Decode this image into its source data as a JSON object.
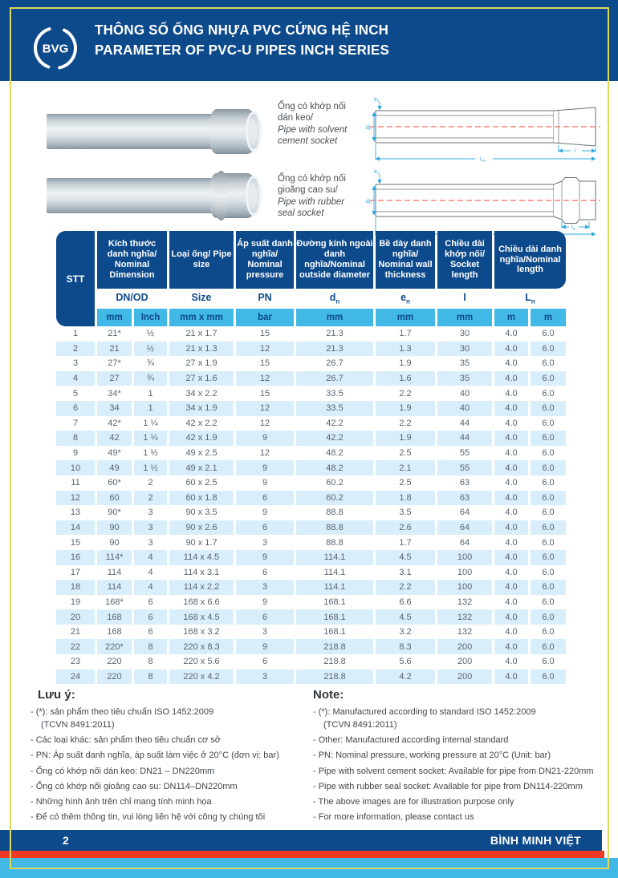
{
  "header": {
    "logo_text": "BVG",
    "title_vi": "THÔNG SỐ ỐNG NHỰA PVC CỨNG HỆ INCH",
    "title_en": "PARAMETER OF PVC-U PIPES INCH SERIES"
  },
  "illustrations": {
    "pipes": [
      {
        "label_vi": "Ống có khớp nối dán keo/",
        "label_en": "Pipe with solvent cement socket"
      },
      {
        "label_vi": "Ống có khớp nối gioăng cao su/",
        "label_en": "Pipe with rubber seal socket"
      }
    ],
    "dims": {
      "en": {
        "base": "e",
        "sub": "n"
      },
      "dn": {
        "base": "d",
        "sub": "n"
      },
      "l": {
        "base": "l",
        "sub": ""
      },
      "ls": {
        "base": "l",
        "sub": "s"
      },
      "Ln": {
        "base": "L",
        "sub": "n"
      }
    }
  },
  "table": {
    "stt": "STT",
    "groups": [
      "Kích thước danh nghĩa/ Nominal Dimension",
      "Loại ống/ Pipe size",
      "Áp suất danh nghĩa/ Nominal pressure",
      "Đường kính ngoài danh nghĩa/Nominal outside diameter",
      "Bề dày danh nghĩa/ Nominal wall thickness",
      "Chiều dài khớp nối/ Socket length",
      "Chiều dài danh nghĩa/Nominal length"
    ],
    "sub_headers": [
      {
        "base": "DN/OD",
        "sub": ""
      },
      {
        "base": "Size",
        "sub": ""
      },
      {
        "base": "PN",
        "sub": ""
      },
      {
        "base": "d",
        "sub": "n"
      },
      {
        "base": "e",
        "sub": "n"
      },
      {
        "base": "l",
        "sub": ""
      },
      {
        "base": "L",
        "sub": "n"
      }
    ],
    "units": [
      "mm",
      "Inch",
      "mm x mm",
      "bar",
      "mm",
      "mm",
      "mm",
      "m",
      "m"
    ],
    "rows": [
      [
        "1",
        "21*",
        "½",
        "21 x 1.7",
        "15",
        "21.3",
        "1.7",
        "30",
        "4.0",
        "6.0"
      ],
      [
        "2",
        "21",
        "½",
        "21 x 1.3",
        "12",
        "21.3",
        "1.3",
        "30",
        "4.0",
        "6.0"
      ],
      [
        "3",
        "27*",
        "¾",
        "27 x 1.9",
        "15",
        "26.7",
        "1.9",
        "35",
        "4.0",
        "6.0"
      ],
      [
        "4",
        "27",
        "¾",
        "27 x 1.6",
        "12",
        "26.7",
        "1.6",
        "35",
        "4.0",
        "6.0"
      ],
      [
        "5",
        "34*",
        "1",
        "34 x 2.2",
        "15",
        "33.5",
        "2.2",
        "40",
        "4.0",
        "6.0"
      ],
      [
        "6",
        "34",
        "1",
        "34 x 1.9",
        "12",
        "33.5",
        "1.9",
        "40",
        "4.0",
        "6.0"
      ],
      [
        "7",
        "42*",
        "1 ¼",
        "42 x 2.2",
        "12",
        "42.2",
        "2.2",
        "44",
        "4.0",
        "6.0"
      ],
      [
        "8",
        "42",
        "1 ¼",
        "42 x 1.9",
        "9",
        "42.2",
        "1.9",
        "44",
        "4.0",
        "6.0"
      ],
      [
        "9",
        "49*",
        "1 ½",
        "49 x 2.5",
        "12",
        "48.2",
        "2.5",
        "55",
        "4.0",
        "6.0"
      ],
      [
        "10",
        "49",
        "1 ½",
        "49 x 2.1",
        "9",
        "48.2",
        "2.1",
        "55",
        "4.0",
        "6.0"
      ],
      [
        "11",
        "60*",
        "2",
        "60 x 2.5",
        "9",
        "60.2",
        "2.5",
        "63",
        "4.0",
        "6.0"
      ],
      [
        "12",
        "60",
        "2",
        "60 x 1.8",
        "6",
        "60.2",
        "1.8",
        "63",
        "4.0",
        "6.0"
      ],
      [
        "13",
        "90*",
        "3",
        "90 x 3.5",
        "9",
        "88.8",
        "3.5",
        "64",
        "4.0",
        "6.0"
      ],
      [
        "14",
        "90",
        "3",
        "90 x 2.6",
        "6",
        "88.8",
        "2.6",
        "64",
        "4.0",
        "6.0"
      ],
      [
        "15",
        "90",
        "3",
        "90 x 1.7",
        "3",
        "88.8",
        "1.7",
        "64",
        "4.0",
        "6.0"
      ],
      [
        "16",
        "114*",
        "4",
        "114 x 4.5",
        "9",
        "114.1",
        "4.5",
        "100",
        "4.0",
        "6.0"
      ],
      [
        "17",
        "114",
        "4",
        "114 x 3.1",
        "6",
        "114.1",
        "3.1",
        "100",
        "4.0",
        "6.0"
      ],
      [
        "18",
        "114",
        "4",
        "114 x 2.2",
        "3",
        "114.1",
        "2.2",
        "100",
        "4.0",
        "6.0"
      ],
      [
        "19",
        "168*",
        "6",
        "168 x 6.6",
        "9",
        "168.1",
        "6.6",
        "132",
        "4.0",
        "6.0"
      ],
      [
        "20",
        "168",
        "6",
        "168 x 4.5",
        "6",
        "168.1",
        "4.5",
        "132",
        "4.0",
        "6.0"
      ],
      [
        "21",
        "168",
        "6",
        "168 x 3.2",
        "3",
        "168.1",
        "3.2",
        "132",
        "4.0",
        "6.0"
      ],
      [
        "22",
        "220*",
        "8",
        "220 x 8.3",
        "9",
        "218.8",
        "8.3",
        "200",
        "4.0",
        "6.0"
      ],
      [
        "23",
        "220",
        "8",
        "220 x 5.6",
        "6",
        "218.8",
        "5.6",
        "200",
        "4.0",
        "6.0"
      ],
      [
        "24",
        "220",
        "8",
        "220 x 4.2",
        "3",
        "218.8",
        "4.2",
        "200",
        "4.0",
        "6.0"
      ]
    ]
  },
  "notes_vi": {
    "title": "Lưu ý:",
    "items": [
      {
        "text": "(*): sản phẩm theo tiêu chuẩn ISO 1452:2009"
      },
      {
        "text": "(TCVN 8491:2011)",
        "cont": true
      },
      {
        "text": "Các loại khác: sản phẩm theo tiêu chuẩn cơ sở"
      },
      {
        "text": "PN: Áp suất danh nghĩa, áp suất làm việc ở 20°C (đơn vị: bar)"
      },
      {
        "text": "Ống có khớp nối dán keo: DN21 – DN220mm"
      },
      {
        "text": "Ống có khớp nối gioăng cao su: DN114–DN220mm"
      },
      {
        "text": "Những hình ảnh trên chỉ mang tính minh họa"
      },
      {
        "text": "Để có thêm thông tin, vui lòng liên hệ với công ty chúng tôi"
      }
    ]
  },
  "notes_en": {
    "title": "Note:",
    "items": [
      {
        "text": "(*): Manufactured according to standard ISO 1452:2009"
      },
      {
        "text": "(TCVN 8491:2011)",
        "cont": true
      },
      {
        "text": "Other: Manufactured according internal standard"
      },
      {
        "text": "PN: Nominal pressure, working pressure at 20°C (Unit: bar)"
      },
      {
        "text": "Pipe with solvent cement socket: Available for pipe from DN21-220mm"
      },
      {
        "text": "Pipe with rubber seal socket: Available for pipe from DN114-220mm"
      },
      {
        "text": "The above images are for illustration purpose only"
      },
      {
        "text": "For more information, please contact us"
      }
    ]
  },
  "footer": {
    "page_number": "2",
    "brand": "BÌNH MINH VIỆT"
  },
  "colors": {
    "primary_blue": "#0d4a8c",
    "accent_cyan": "#41b8e6",
    "row_stripe_blue": "#d8effb",
    "stripe_red": "#ee3a24",
    "frame_yellow": "#ddd75a"
  }
}
